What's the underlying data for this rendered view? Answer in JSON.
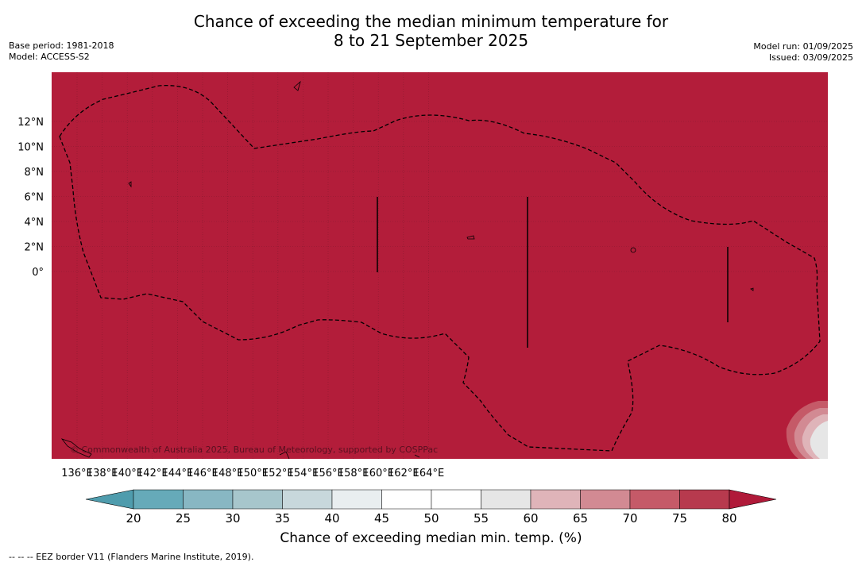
{
  "header": {
    "title_line1": "Chance of exceeding the median minimum temperature for",
    "title_line2": "8 to 21 September 2025",
    "base_period": "Base period: 1981-2018",
    "model": "Model: ACCESS-S2",
    "model_run": "Model run: 01/09/2025",
    "issued": "Issued: 03/09/2025"
  },
  "map": {
    "lon_labels": [
      "136°E",
      "138°E",
      "140°E",
      "142°E",
      "144°E",
      "146°E",
      "148°E",
      "150°E",
      "152°E",
      "154°E",
      "156°E",
      "158°E",
      "160°E",
      "162°E",
      "164°E"
    ],
    "lat_labels": [
      "12°N",
      "10°N",
      "8°N",
      "6°N",
      "4°N",
      "2°N",
      "0°"
    ],
    "background_fill": "#b31d3a",
    "copyright": "© Commonwealth of Australia 2025, Bureau of Meteorology, supported by COSPPac"
  },
  "colorbar": {
    "ticks": [
      "20",
      "25",
      "30",
      "35",
      "40",
      "45",
      "50",
      "55",
      "60",
      "65",
      "70",
      "75",
      "80"
    ],
    "colors": [
      "#4f9cad",
      "#66aab9",
      "#88b7c3",
      "#a7c6cc",
      "#c8d8dc",
      "#e9eef0",
      "#ffffff",
      "#ffffff",
      "#e6e6e6",
      "#dfb4b9",
      "#d28a93",
      "#c55a68",
      "#b73a4e",
      "#b01a39"
    ],
    "title": "Chance of exceeding median min. temp. (%)"
  },
  "footnote": "--  --  -- EEZ border V11 (Flanders Marine Institute, 2019)."
}
